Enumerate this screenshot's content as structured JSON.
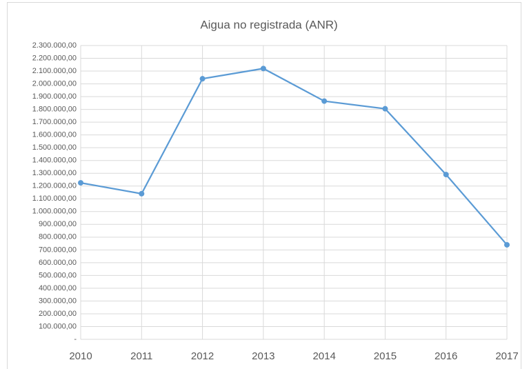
{
  "chart_data": {
    "type": "line",
    "title": "Aigua no registrada (ANR)",
    "categories": [
      "2010",
      "2011",
      "2012",
      "2013",
      "2014",
      "2015",
      "2016",
      "2017"
    ],
    "series": [
      {
        "name": "ANR",
        "color": "#5b9bd5",
        "values": [
          1225000,
          1140000,
          2040000,
          2120000,
          1865000,
          1805000,
          1290000,
          740000
        ]
      }
    ],
    "ylim": [
      0,
      2300000
    ],
    "yticks": [
      {
        "value": 0,
        "label": "-"
      },
      {
        "value": 100000,
        "label": "100.000,00"
      },
      {
        "value": 200000,
        "label": "200.000,00"
      },
      {
        "value": 300000,
        "label": "300.000,00"
      },
      {
        "value": 400000,
        "label": "400.000,00"
      },
      {
        "value": 500000,
        "label": "500.000,00"
      },
      {
        "value": 600000,
        "label": "600.000,00"
      },
      {
        "value": 700000,
        "label": "700.000,00"
      },
      {
        "value": 800000,
        "label": "800.000,00"
      },
      {
        "value": 900000,
        "label": "900.000,00"
      },
      {
        "value": 1000000,
        "label": "1.000.000,00"
      },
      {
        "value": 1100000,
        "label": "1.100.000,00"
      },
      {
        "value": 1200000,
        "label": "1.200.000,00"
      },
      {
        "value": 1300000,
        "label": "1.300.000,00"
      },
      {
        "value": 1400000,
        "label": "1.400.000,00"
      },
      {
        "value": 1500000,
        "label": "1.500.000,00"
      },
      {
        "value": 1600000,
        "label": "1.600.000,00"
      },
      {
        "value": 1700000,
        "label": "1.700.000,00"
      },
      {
        "value": 1800000,
        "label": "1.800.000,00"
      },
      {
        "value": 1900000,
        "label": "1.900.000,00"
      },
      {
        "value": 2000000,
        "label": "2.000.000,00"
      },
      {
        "value": 2100000,
        "label": "2.100.000,00"
      },
      {
        "value": 2200000,
        "label": "2.200.000,00"
      },
      {
        "value": 2300000,
        "label": "2.300.000,00"
      }
    ],
    "grid": true
  }
}
